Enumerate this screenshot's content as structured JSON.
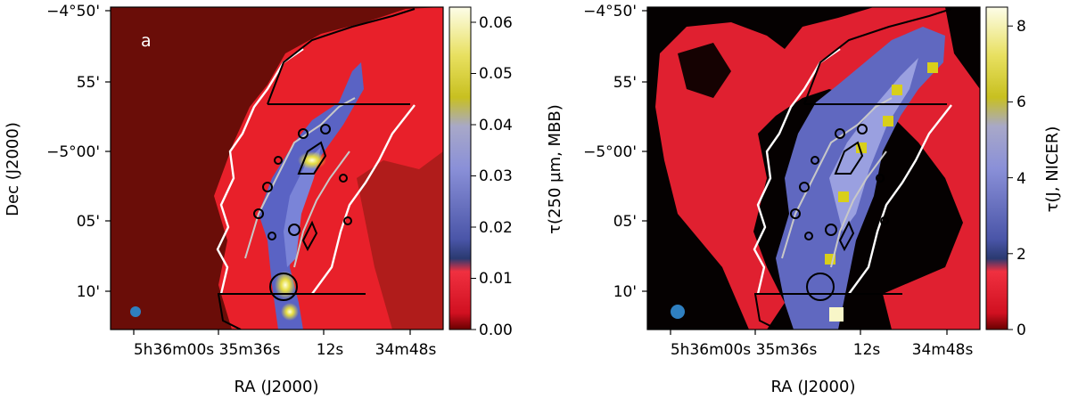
{
  "panels": [
    {
      "label": "a",
      "xlabel": "RA (J2000)",
      "ylabel": "Dec (J2000)",
      "x_ticks": [
        "5h36m00s",
        "35m36s",
        "12s",
        "34m48s"
      ],
      "y_ticks": [
        "−4°50'",
        "55'",
        "−5°00'",
        "05'",
        "10'"
      ],
      "colorbar": {
        "label": "τ(250 µm, MBB)",
        "ticks": [
          "0.00",
          "0.01",
          "0.02",
          "0.03",
          "0.04",
          "0.05",
          "0.06"
        ],
        "range": [
          0,
          0.063
        ]
      }
    },
    {
      "label": "",
      "xlabel": "RA (J2000)",
      "ylabel": "",
      "x_ticks": [
        "5h36m00s",
        "35m36s",
        "12s",
        "34m48s"
      ],
      "y_ticks": [
        "−4°50'",
        "55'",
        "−5°00'",
        "05'",
        "10'"
      ],
      "colorbar": {
        "label": "τ(J, NICER)",
        "ticks": [
          "0",
          "2",
          "4",
          "6",
          "8"
        ],
        "range": [
          0,
          8.5
        ]
      }
    }
  ],
  "colors": {
    "map_background_a": "#6a0d08",
    "map_background_b": "#050101",
    "map_red": "#e8202a",
    "map_blue": "#5a63c4",
    "map_yellow": "#d8cf1a",
    "beam_marker": "#2f7fc0"
  }
}
